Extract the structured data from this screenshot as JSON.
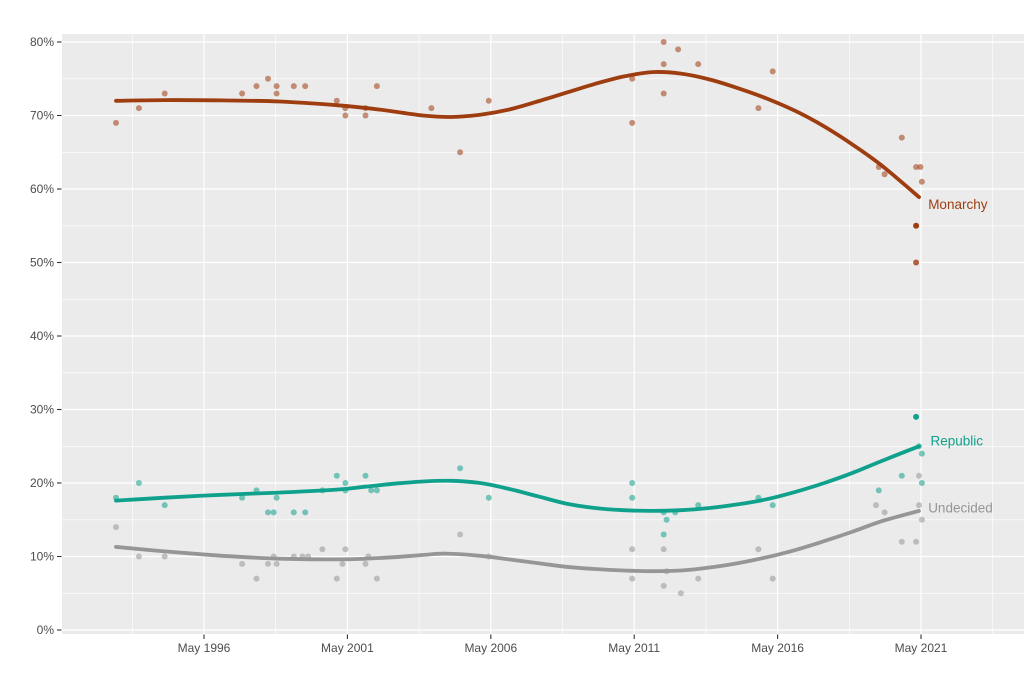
{
  "page": {
    "background": "#ffffff",
    "panel_background": "#ebebeb",
    "gridline_color": "#ffffff",
    "axis_text_color": "#4d4d4d",
    "tick_mark_color": "#333333"
  },
  "chart_data": {
    "type": "scatter",
    "title": "",
    "xlabel": "",
    "ylabel": "",
    "grid": "major+minor",
    "legend_position": "right-of-line-labels",
    "x_axis": {
      "ticks": [
        {
          "year": 1996.37,
          "label": "May 1996"
        },
        {
          "year": 2001.37,
          "label": "May 2001"
        },
        {
          "year": 2006.37,
          "label": "May 2006"
        },
        {
          "year": 2011.37,
          "label": "May 2011"
        },
        {
          "year": 2016.37,
          "label": "May 2016"
        },
        {
          "year": 2021.37,
          "label": "May 2021"
        }
      ],
      "range_years": [
        1991.4,
        2025.0
      ]
    },
    "y_axis": {
      "unit": "%",
      "ticks": [
        {
          "value": 0,
          "label": "0%"
        },
        {
          "value": 10,
          "label": "10%"
        },
        {
          "value": 20,
          "label": "20%"
        },
        {
          "value": 30,
          "label": "30%"
        },
        {
          "value": 40,
          "label": "40%"
        },
        {
          "value": 50,
          "label": "50%"
        },
        {
          "value": 60,
          "label": "60%"
        },
        {
          "value": 70,
          "label": "70%"
        },
        {
          "value": 80,
          "label": "80%"
        }
      ],
      "range": [
        -0.5,
        81
      ]
    },
    "series": [
      {
        "name": "Monarchy",
        "color": "#9E3D10",
        "point_opacity": 0.55,
        "label_pos": {
          "year": 2021.62,
          "pct": 57.8
        },
        "points": [
          [
            1993.3,
            69
          ],
          [
            1994.1,
            71
          ],
          [
            1995.0,
            73
          ],
          [
            1997.7,
            73
          ],
          [
            1998.2,
            74
          ],
          [
            1998.6,
            75
          ],
          [
            1998.9,
            74
          ],
          [
            1998.9,
            73
          ],
          [
            1999.5,
            74
          ],
          [
            1999.9,
            74
          ],
          [
            2001.0,
            72
          ],
          [
            2001.3,
            71
          ],
          [
            2001.3,
            70
          ],
          [
            2002.0,
            71
          ],
          [
            2002.0,
            70
          ],
          [
            2002.4,
            74
          ],
          [
            2004.3,
            71
          ],
          [
            2005.3,
            65
          ],
          [
            2006.3,
            72
          ],
          [
            2011.3,
            75
          ],
          [
            2011.3,
            69
          ],
          [
            2012.4,
            80
          ],
          [
            2012.4,
            77
          ],
          [
            2012.4,
            73
          ],
          [
            2012.9,
            79
          ],
          [
            2013.6,
            77
          ],
          [
            2015.7,
            71
          ],
          [
            2016.2,
            76
          ],
          [
            2019.9,
            63
          ],
          [
            2020.1,
            62
          ],
          [
            2020.7,
            67
          ],
          [
            2021.2,
            63
          ],
          [
            2021.35,
            63
          ],
          [
            2021.4,
            61
          ],
          [
            2021.2,
            55,
            1
          ],
          [
            2021.2,
            50,
            0.8
          ]
        ],
        "trend": [
          [
            1993.3,
            72.0
          ],
          [
            1995,
            72.1
          ],
          [
            1997,
            72.05
          ],
          [
            1999,
            71.9
          ],
          [
            2001,
            71.4
          ],
          [
            2002.5,
            70.8
          ],
          [
            2004,
            70.0
          ],
          [
            2005,
            69.8
          ],
          [
            2006,
            70.1
          ],
          [
            2007,
            70.8
          ],
          [
            2008,
            71.9
          ],
          [
            2009,
            73.1
          ],
          [
            2010,
            74.3
          ],
          [
            2011,
            75.3
          ],
          [
            2012,
            75.9
          ],
          [
            2013,
            75.7
          ],
          [
            2014,
            74.9
          ],
          [
            2015,
            73.7
          ],
          [
            2016,
            72.3
          ],
          [
            2017,
            70.6
          ],
          [
            2018,
            68.5
          ],
          [
            2019,
            66.0
          ],
          [
            2020,
            63.2
          ],
          [
            2021.3,
            58.9
          ]
        ]
      },
      {
        "name": "Republic",
        "color": "#10A18D",
        "point_opacity": 0.55,
        "label_pos": {
          "year": 2021.7,
          "pct": 25.6
        },
        "points": [
          [
            1993.3,
            18
          ],
          [
            1994.1,
            20
          ],
          [
            1995.0,
            17
          ],
          [
            1997.7,
            18
          ],
          [
            1998.2,
            19
          ],
          [
            1998.6,
            16
          ],
          [
            1998.8,
            16
          ],
          [
            1998.9,
            18
          ],
          [
            1999.5,
            16
          ],
          [
            1999.9,
            16
          ],
          [
            2000.5,
            19
          ],
          [
            2001.0,
            21
          ],
          [
            2001.3,
            20
          ],
          [
            2001.3,
            19
          ],
          [
            2002.0,
            21
          ],
          [
            2002.2,
            19
          ],
          [
            2002.4,
            19
          ],
          [
            2005.3,
            22
          ],
          [
            2006.3,
            18
          ],
          [
            2011.3,
            20
          ],
          [
            2011.3,
            18
          ],
          [
            2012.4,
            16
          ],
          [
            2012.5,
            15
          ],
          [
            2012.4,
            13
          ],
          [
            2012.8,
            16
          ],
          [
            2013.6,
            17
          ],
          [
            2015.7,
            18
          ],
          [
            2016.2,
            17
          ],
          [
            2019.9,
            19
          ],
          [
            2020.7,
            21
          ],
          [
            2021.2,
            29,
            1
          ],
          [
            2021.3,
            25
          ],
          [
            2021.4,
            24
          ],
          [
            2021.4,
            20
          ]
        ],
        "trend": [
          [
            1993.3,
            17.6
          ],
          [
            1995,
            18.0
          ],
          [
            1997,
            18.4
          ],
          [
            1999,
            18.7
          ],
          [
            2001,
            19.1
          ],
          [
            2002,
            19.5
          ],
          [
            2003,
            19.9
          ],
          [
            2004,
            20.2
          ],
          [
            2005,
            20.3
          ],
          [
            2006,
            20.0
          ],
          [
            2007,
            19.2
          ],
          [
            2008,
            18.2
          ],
          [
            2009,
            17.2
          ],
          [
            2010,
            16.6
          ],
          [
            2011,
            16.3
          ],
          [
            2012,
            16.2
          ],
          [
            2013,
            16.3
          ],
          [
            2014,
            16.6
          ],
          [
            2015,
            17.1
          ],
          [
            2016,
            17.8
          ],
          [
            2017,
            18.8
          ],
          [
            2018,
            20.0
          ],
          [
            2019,
            21.4
          ],
          [
            2020,
            23.0
          ],
          [
            2021.3,
            25.0
          ]
        ]
      },
      {
        "name": "Undecided",
        "color": "#969696",
        "point_opacity": 0.55,
        "label_pos": {
          "year": 2021.62,
          "pct": 16.5
        },
        "points": [
          [
            1993.3,
            14
          ],
          [
            1994.1,
            10
          ],
          [
            1995.0,
            10
          ],
          [
            1997.7,
            9
          ],
          [
            1998.2,
            7
          ],
          [
            1998.6,
            9
          ],
          [
            1998.8,
            10
          ],
          [
            1998.9,
            9
          ],
          [
            1999.5,
            10
          ],
          [
            1999.8,
            10
          ],
          [
            2000.0,
            10
          ],
          [
            2000.5,
            11
          ],
          [
            2001.0,
            7
          ],
          [
            2001.3,
            11
          ],
          [
            2001.2,
            9
          ],
          [
            2002.0,
            9
          ],
          [
            2002.1,
            10
          ],
          [
            2002.4,
            7
          ],
          [
            2005.3,
            13
          ],
          [
            2006.3,
            10
          ],
          [
            2011.3,
            11
          ],
          [
            2011.3,
            7
          ],
          [
            2012.4,
            11
          ],
          [
            2012.4,
            6
          ],
          [
            2012.5,
            8
          ],
          [
            2013.0,
            5
          ],
          [
            2013.6,
            7
          ],
          [
            2015.7,
            11
          ],
          [
            2016.2,
            7
          ],
          [
            2019.8,
            17
          ],
          [
            2020.1,
            16
          ],
          [
            2020.7,
            12
          ],
          [
            2021.2,
            12
          ],
          [
            2021.3,
            21
          ],
          [
            2021.3,
            17
          ],
          [
            2021.4,
            15
          ]
        ],
        "trend": [
          [
            1993.3,
            11.3
          ],
          [
            1995,
            10.7
          ],
          [
            1997,
            10.1
          ],
          [
            1999,
            9.7
          ],
          [
            2001,
            9.6
          ],
          [
            2002,
            9.7
          ],
          [
            2003,
            9.9
          ],
          [
            2004,
            10.2
          ],
          [
            2004.8,
            10.4
          ],
          [
            2006,
            10.1
          ],
          [
            2007,
            9.6
          ],
          [
            2008,
            9.1
          ],
          [
            2009,
            8.6
          ],
          [
            2010,
            8.3
          ],
          [
            2011,
            8.1
          ],
          [
            2012,
            8.0
          ],
          [
            2013,
            8.1
          ],
          [
            2014,
            8.5
          ],
          [
            2015,
            9.1
          ],
          [
            2016,
            9.9
          ],
          [
            2017,
            10.9
          ],
          [
            2018,
            12.1
          ],
          [
            2019,
            13.4
          ],
          [
            2020,
            14.8
          ],
          [
            2021.3,
            16.2
          ]
        ]
      }
    ]
  }
}
